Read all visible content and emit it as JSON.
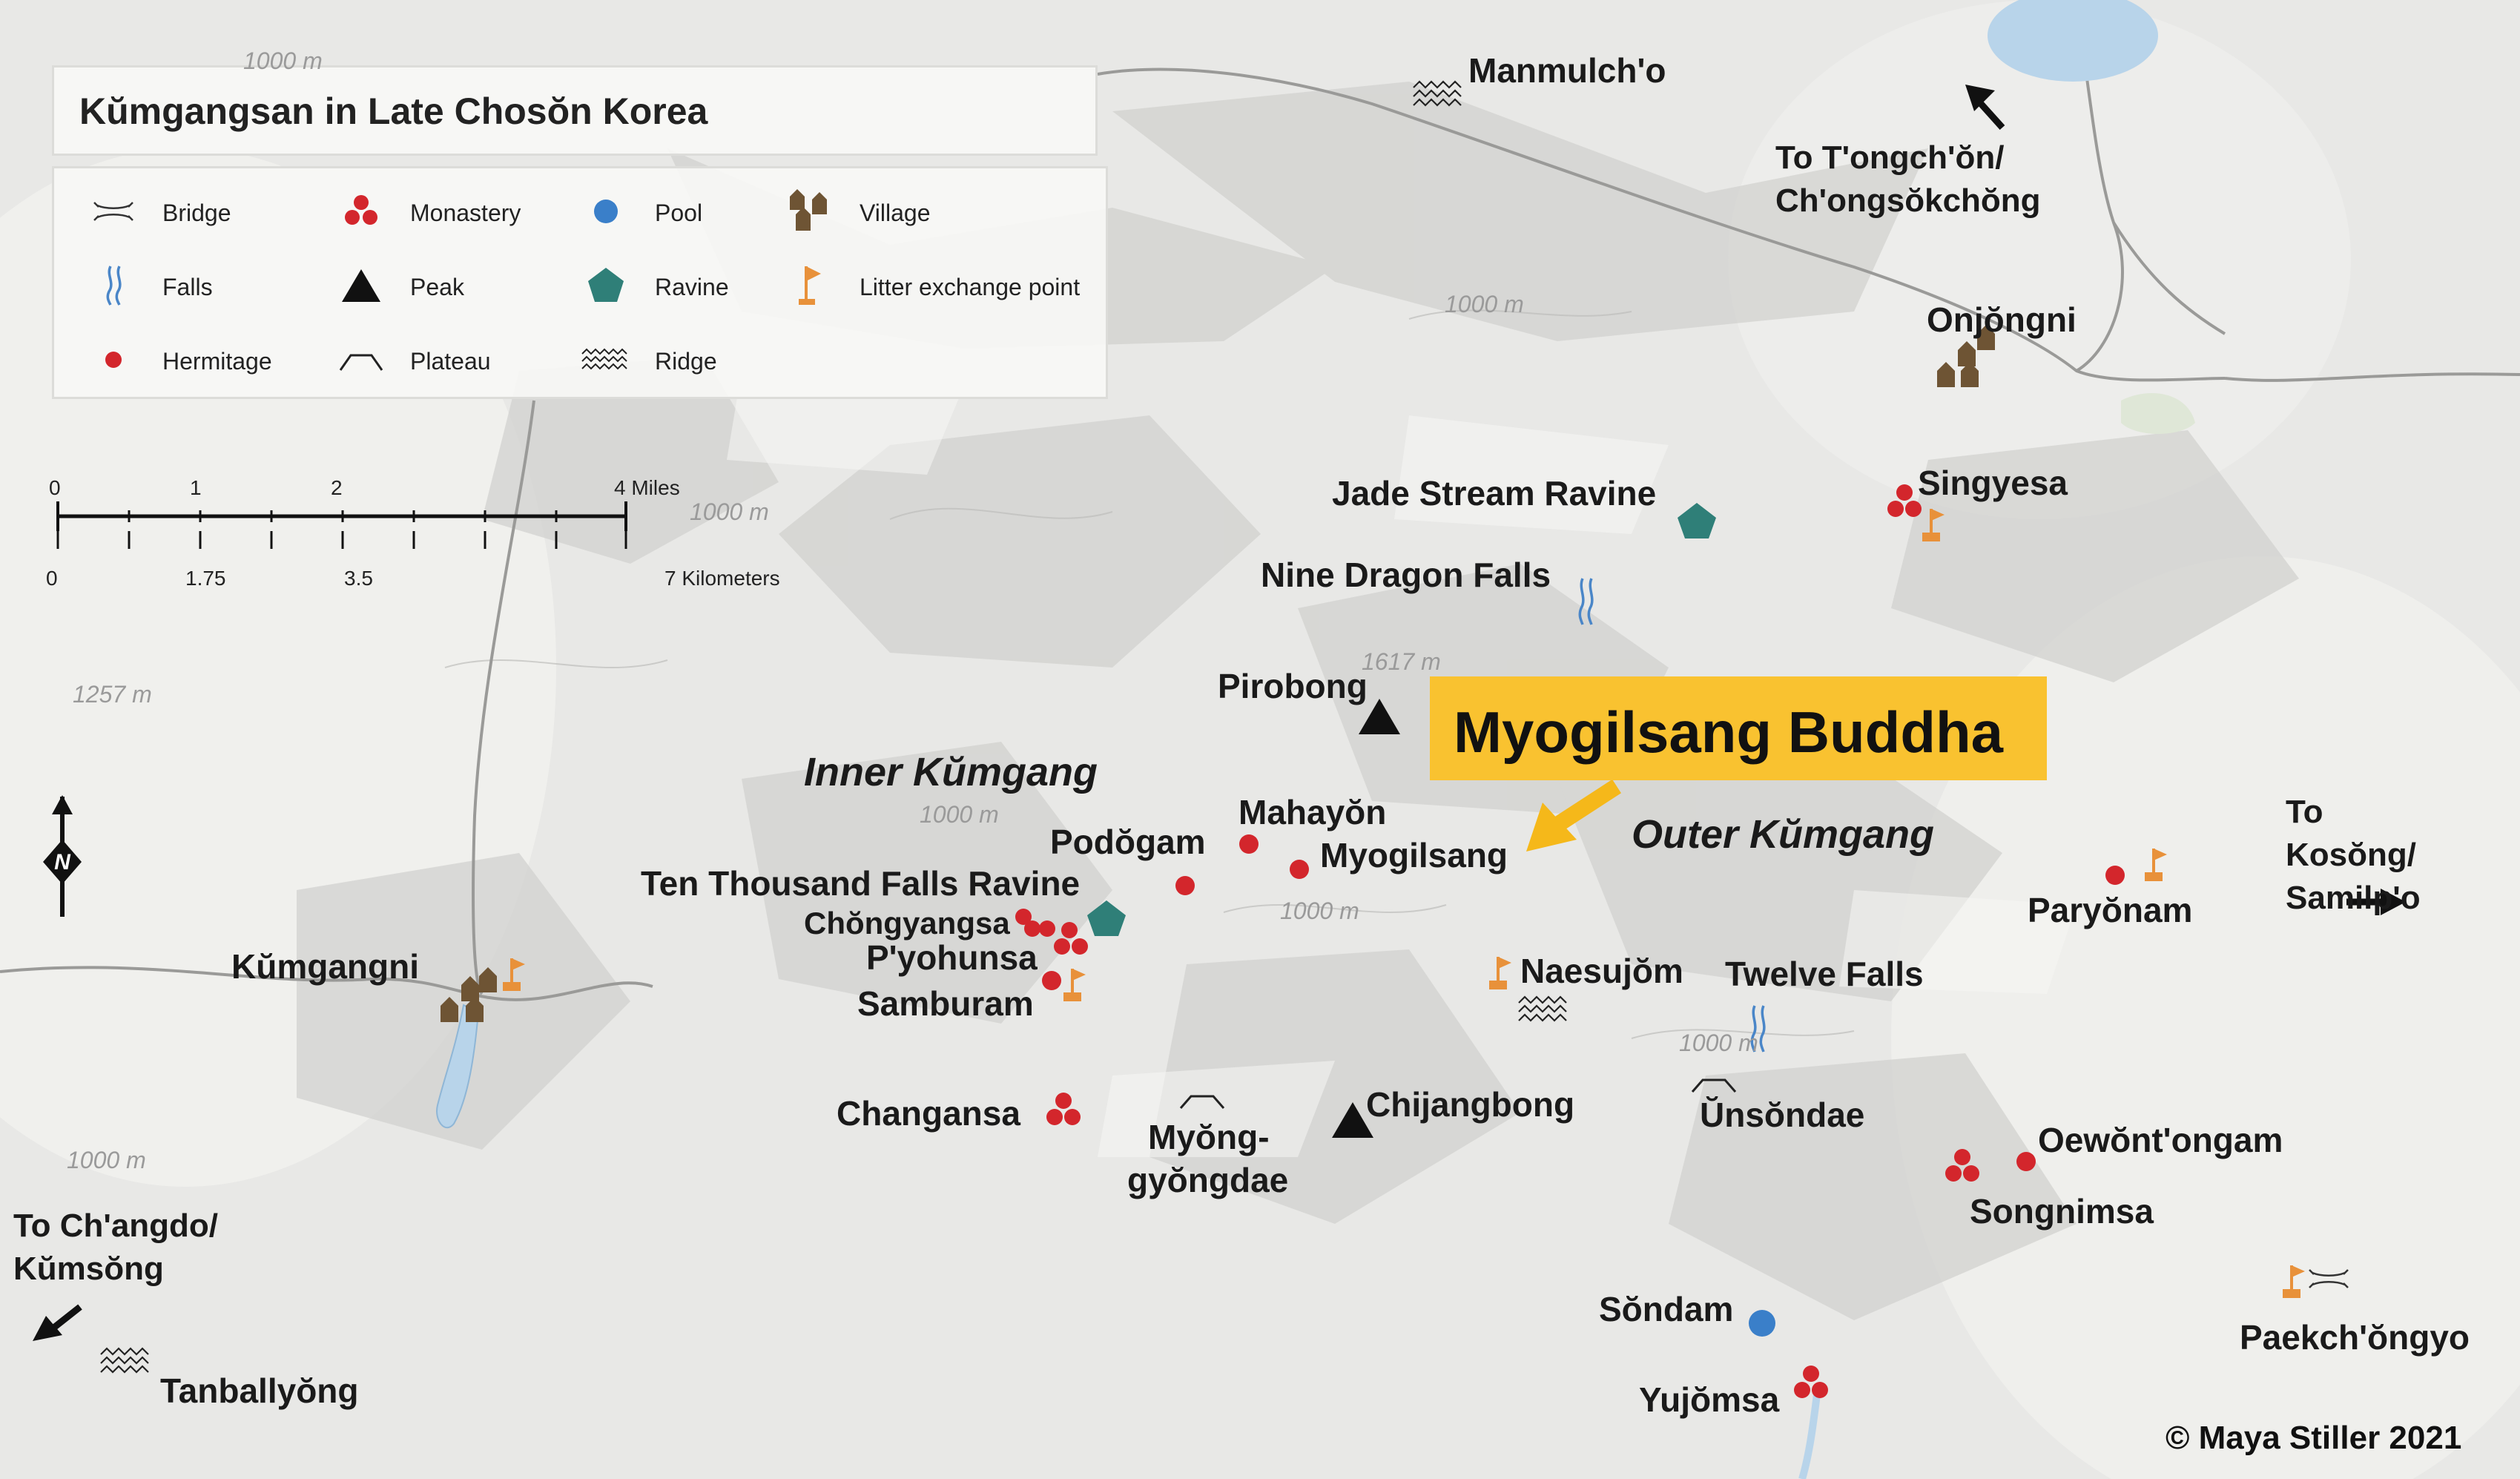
{
  "legend": {
    "title": "Kŭmgangsan in Late Chosŏn Korea",
    "items": [
      {
        "label": "Bridge",
        "icon": "bridge-icon"
      },
      {
        "label": "Falls",
        "icon": "falls-icon"
      },
      {
        "label": "Hermitage",
        "icon": "hermitage-icon"
      },
      {
        "label": "Monastery",
        "icon": "monastery-icon"
      },
      {
        "label": "Peak",
        "icon": "peak-icon"
      },
      {
        "label": "Plateau",
        "icon": "plateau-icon"
      },
      {
        "label": "Pool",
        "icon": "pool-icon"
      },
      {
        "label": "Ravine",
        "icon": "ravine-icon"
      },
      {
        "label": "Ridge",
        "icon": "ridge-icon"
      },
      {
        "label": "Village",
        "icon": "village-icon"
      },
      {
        "label": "Litter exchange point",
        "icon": "litter-exchange-point-icon"
      }
    ]
  },
  "scale_bar": {
    "miles_ticks": [
      "0",
      "1",
      "2",
      "4 Miles"
    ],
    "km_ticks": [
      "0",
      "1.75",
      "3.5",
      "7 Kilometers"
    ]
  },
  "regions": {
    "inner": "Inner Kŭmgang",
    "outer": "Outer Kŭmgang"
  },
  "callout": "Myogilsang Buddha",
  "directions": {
    "northwest": "To T'ongch'ŏn/ Ch'ongsŏkchŏng",
    "east": "To Kosŏng/ Samilp'o",
    "southwest": "To Ch'angdo/ Kŭmsŏng"
  },
  "places": {
    "manmulcho": "Manmulch'o",
    "onjongni": "Onjŏngni",
    "singyesa": "Singyesa",
    "jade_stream": "Jade Stream Ravine",
    "nine_dragon": "Nine Dragon Falls",
    "pirobong": "Pirobong",
    "mahayon": "Mahayŏn",
    "podogam": "Podŏgam",
    "myogilsang": "Myogilsang",
    "ten_thousand": "Ten Thousand Falls Ravine",
    "chongyangsa": "Chŏngyangsa",
    "pyohunsa": "P'yohunsa",
    "samburam": "Samburam",
    "kumgangni": "Kŭmgangni",
    "changansa": "Changansa",
    "myonggyongdae_1": "Myŏng-",
    "myonggyongdae_2": "gyŏngdae",
    "chijangbong": "Chijangbong",
    "naesujom": "Naesujŏm",
    "twelve_falls": "Twelve Falls",
    "unsondae": "Ŭnsŏndae",
    "paryonam": "Paryŏnam",
    "oewontongam": "Oewŏnt'ongam",
    "songnimsa": "Songnimsa",
    "sondam": "Sŏndam",
    "yujomsa": "Yujŏmsa",
    "paekchongyo": "Paekch'ŏngyo",
    "tanballyong": "Tanballyŏng"
  },
  "elevations": [
    "1000 m",
    "1000 m",
    "1000 m",
    "1617 m",
    "1000 m",
    "1000 m",
    "1257 m",
    "1000 m",
    "1000 m"
  ],
  "north_label": "N",
  "copyright": "© Maya Stiller 2021",
  "colors": {
    "hermitage": "#d3262c",
    "ravine": "#2f7f78",
    "falls": "#4a86c8",
    "pool": "#3a7fc9",
    "litter_flag": "#e8913a",
    "village": "#6e5434",
    "callout_bg": "#f9c230",
    "callout_arrow": "#f5b81a"
  }
}
